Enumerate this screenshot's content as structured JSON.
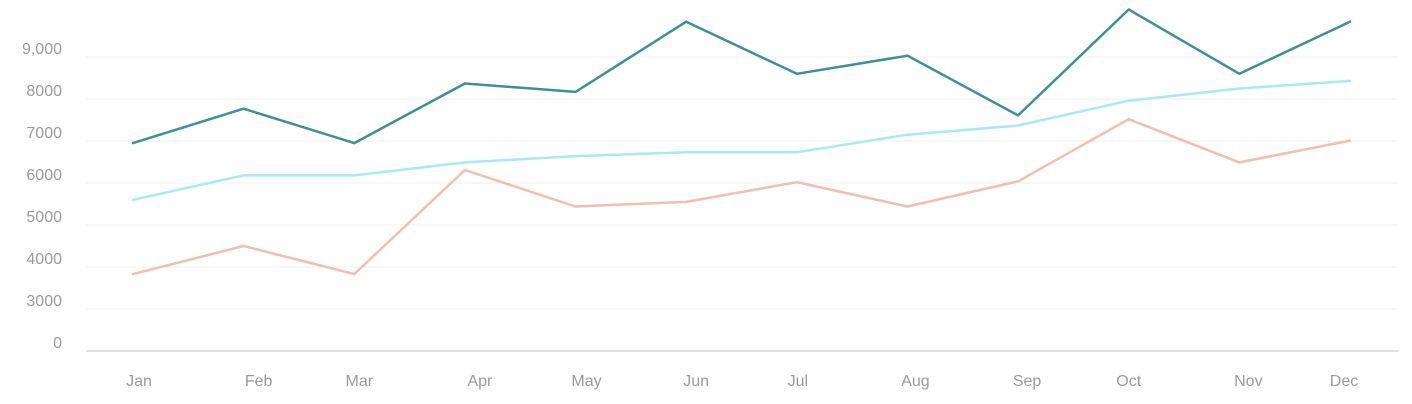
{
  "chart_data": {
    "type": "line",
    "title": "",
    "xlabel": "",
    "ylabel": "",
    "categories": [
      "Jan",
      "Feb",
      "Mar",
      "Apr",
      "May",
      "Jun",
      "Jul",
      "Aug",
      "Sep",
      "Oct",
      "Nov",
      "Dec"
    ],
    "y_ticks": [
      "0",
      "3000",
      "4000",
      "5000",
      "6000",
      "7000",
      "8000",
      "9,000"
    ],
    "grid": true,
    "legend": "none",
    "series": [
      {
        "color": "#3f8f96",
        "values": [
          6950,
          7770,
          6950,
          8370,
          8170,
          9840,
          8600,
          9030,
          7610,
          10130,
          8600,
          9840
        ]
      },
      {
        "color": "#a8eaee",
        "values": [
          5600,
          6180,
          6180,
          6490,
          6640,
          6730,
          6730,
          7150,
          7370,
          7960,
          8250,
          8430
        ]
      },
      {
        "color": "#efc0ab",
        "values": [
          3830,
          4500,
          3830,
          6310,
          5440,
          5550,
          6020,
          5440,
          6040,
          7520,
          6490,
          7010
        ]
      }
    ]
  }
}
